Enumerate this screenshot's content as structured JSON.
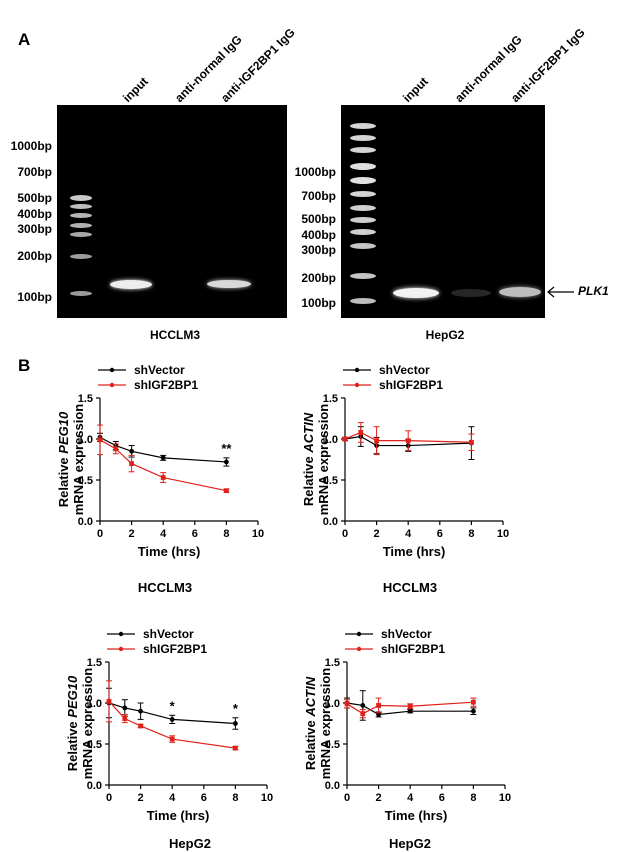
{
  "panels": {
    "a_label": "A",
    "b_label": "B"
  },
  "gels": [
    {
      "title": "HCCLM3",
      "lanes": [
        "input",
        "anti-normal IgG",
        "anti-IGF2BP1 IgG"
      ],
      "markers": [
        "1000bp",
        "700bp",
        "500bp",
        "400bp",
        "300bp",
        "200bp",
        "100bp"
      ]
    },
    {
      "title": "HepG2",
      "lanes": [
        "input",
        "anti-normal IgG",
        "anti-IGF2BP1 IgG"
      ],
      "markers": [
        "1000bp",
        "700bp",
        "500bp",
        "400bp",
        "300bp",
        "200bp",
        "100bp"
      ],
      "band_label": "PLK1"
    }
  ],
  "chart_data": [
    {
      "type": "line",
      "title": "HCCLM3",
      "xlabel": "Time (hrs)",
      "ylabel_pre": "Relative ",
      "ylabel_gene": "PEG10",
      "ylabel2": "mRNA expression",
      "xlim": [
        0,
        10
      ],
      "ylim": [
        0,
        1.5
      ],
      "xticks": [
        "0",
        "2",
        "4",
        "6",
        "8",
        "10"
      ],
      "yticks": [
        "0.0",
        "0.5",
        "1.0",
        "1.5"
      ],
      "x": [
        0,
        1,
        2,
        4,
        8
      ],
      "series": [
        {
          "name": "shVector",
          "color": "#000000",
          "values": [
            1.02,
            0.92,
            0.85,
            0.77,
            0.72
          ],
          "err": [
            0.05,
            0.05,
            0.07,
            0.03,
            0.05
          ]
        },
        {
          "name": "shIGF2BP1",
          "color": "#e0221b",
          "values": [
            0.99,
            0.88,
            0.7,
            0.53,
            0.37
          ],
          "err": [
            0.18,
            0.06,
            0.1,
            0.06,
            0.02
          ]
        }
      ],
      "annotations": [
        {
          "x": 8,
          "text": "**"
        }
      ]
    },
    {
      "type": "line",
      "title": "HCCLM3",
      "xlabel": "Time (hrs)",
      "ylabel_pre": "Relative ",
      "ylabel_gene": "ACTIN",
      "ylabel2": "mRNA expression",
      "xlim": [
        0,
        10
      ],
      "ylim": [
        0,
        1.5
      ],
      "xticks": [
        "0",
        "2",
        "4",
        "6",
        "8",
        "10"
      ],
      "yticks": [
        "0.0",
        "0.5",
        "1.0",
        "1.5"
      ],
      "x": [
        0,
        1,
        2,
        4,
        8
      ],
      "series": [
        {
          "name": "shVector",
          "color": "#000000",
          "values": [
            1.0,
            1.03,
            0.92,
            0.92,
            0.95
          ],
          "err": [
            0.02,
            0.12,
            0.1,
            0.07,
            0.2
          ]
        },
        {
          "name": "shIGF2BP1",
          "color": "#e0221b",
          "values": [
            1.0,
            1.08,
            0.98,
            0.98,
            0.96
          ],
          "err": [
            0.02,
            0.12,
            0.17,
            0.12,
            0.1
          ]
        }
      ],
      "annotations": []
    },
    {
      "type": "line",
      "title": "HepG2",
      "xlabel": "Time (hrs)",
      "ylabel_pre": "Relative ",
      "ylabel_gene": "PEG10",
      "ylabel2": "mRNA expression",
      "xlim": [
        0,
        10
      ],
      "ylim": [
        0,
        1.5
      ],
      "xticks": [
        "0",
        "2",
        "4",
        "6",
        "8",
        "10"
      ],
      "yticks": [
        "0.0",
        "0.5",
        "1.0",
        "1.5"
      ],
      "x": [
        0,
        1,
        2,
        4,
        8
      ],
      "series": [
        {
          "name": "shVector",
          "color": "#000000",
          "values": [
            1.0,
            0.94,
            0.9,
            0.8,
            0.75
          ],
          "err": [
            0.18,
            0.1,
            0.1,
            0.05,
            0.07
          ]
        },
        {
          "name": "shIGF2BP1",
          "color": "#e0221b",
          "values": [
            1.02,
            0.81,
            0.72,
            0.56,
            0.45
          ],
          "err": [
            0.25,
            0.05,
            0.02,
            0.04,
            0.02
          ]
        }
      ],
      "annotations": [
        {
          "x": 4,
          "text": "*"
        },
        {
          "x": 8,
          "text": "*"
        }
      ]
    },
    {
      "type": "line",
      "title": "HepG2",
      "xlabel": "Time (hrs)",
      "ylabel_pre": "Relative ",
      "ylabel_gene": "ACTIN",
      "ylabel2": "mRNA expression",
      "xlim": [
        0,
        10
      ],
      "ylim": [
        0,
        1.5
      ],
      "xticks": [
        "0",
        "2",
        "4",
        "6",
        "8",
        "10"
      ],
      "yticks": [
        "0.0",
        "0.5",
        "1.0",
        "1.5"
      ],
      "x": [
        0,
        1,
        2,
        4,
        8
      ],
      "series": [
        {
          "name": "shVector",
          "color": "#000000",
          "values": [
            1.0,
            0.97,
            0.86,
            0.9,
            0.9
          ],
          "err": [
            0.06,
            0.18,
            0.03,
            0.02,
            0.04
          ]
        },
        {
          "name": "shIGF2BP1",
          "color": "#e0221b",
          "values": [
            0.99,
            0.87,
            0.97,
            0.96,
            1.01
          ],
          "err": [
            0.05,
            0.05,
            0.09,
            0.03,
            0.05
          ]
        }
      ],
      "annotations": []
    }
  ]
}
